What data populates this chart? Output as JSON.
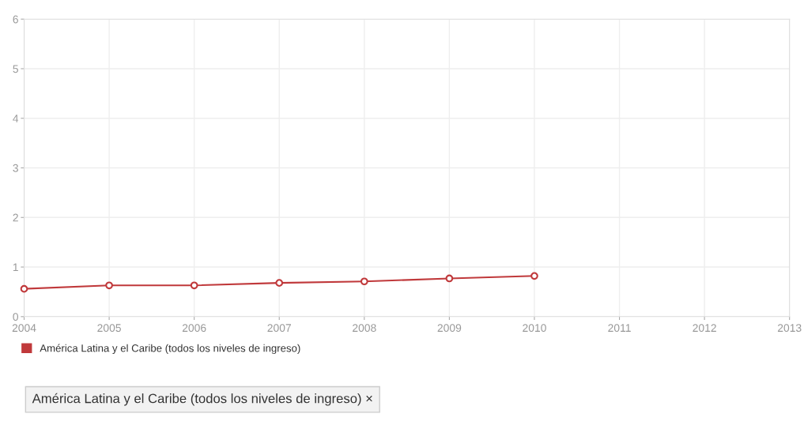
{
  "chart_data": {
    "type": "line",
    "x": [
      2004,
      2005,
      2006,
      2007,
      2008,
      2009,
      2010
    ],
    "series": [
      {
        "name": "América Latina y el Caribe (todos los niveles de ingreso)",
        "color": "#c0393b",
        "values": [
          0.56,
          0.63,
          0.63,
          0.68,
          0.71,
          0.77,
          0.82
        ]
      }
    ],
    "xlim": [
      2004,
      2013
    ],
    "xticks": [
      2004,
      2005,
      2006,
      2007,
      2008,
      2009,
      2010,
      2011,
      2012,
      2013
    ],
    "ylim": [
      0,
      6
    ],
    "yticks": [
      0,
      1,
      2,
      3,
      4,
      5,
      6
    ],
    "grid": true,
    "legend": "bottom left",
    "marker": "circle",
    "line_style": "solid",
    "annotations": [
      "América Latina y el Caribe (todos los niveles de ingreso) ×"
    ]
  }
}
